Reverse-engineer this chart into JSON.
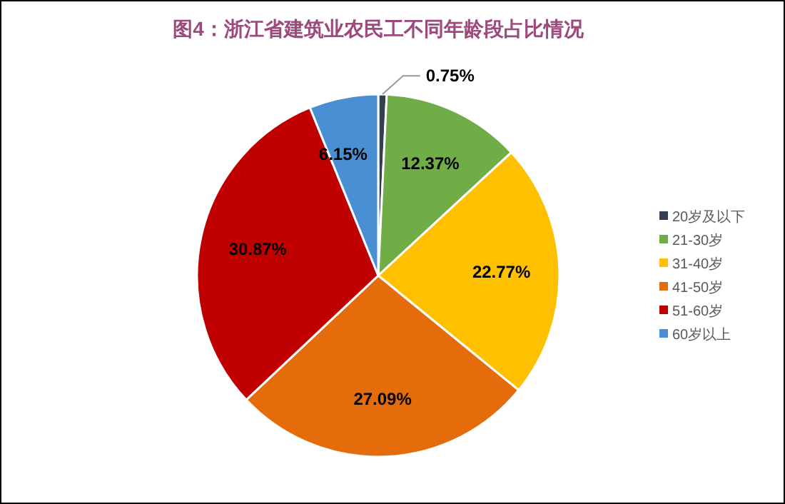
{
  "chart_data": {
    "type": "pie",
    "title": "图4：浙江省建筑业农民工不同年龄段占比情况",
    "categories": [
      "20岁及以下",
      "21-30岁",
      "31-40岁",
      "41-50岁",
      "51-60岁",
      "60岁以上"
    ],
    "values": [
      0.75,
      12.37,
      22.77,
      27.09,
      30.87,
      6.15
    ],
    "value_labels": [
      "0.75%",
      "12.37%",
      "22.77%",
      "27.09%",
      "30.87%",
      "6.15%"
    ],
    "colors": [
      "#333f50",
      "#70ad47",
      "#ffc000",
      "#e46c0a",
      "#c00000",
      "#4a8fd4"
    ],
    "legend": "right"
  }
}
